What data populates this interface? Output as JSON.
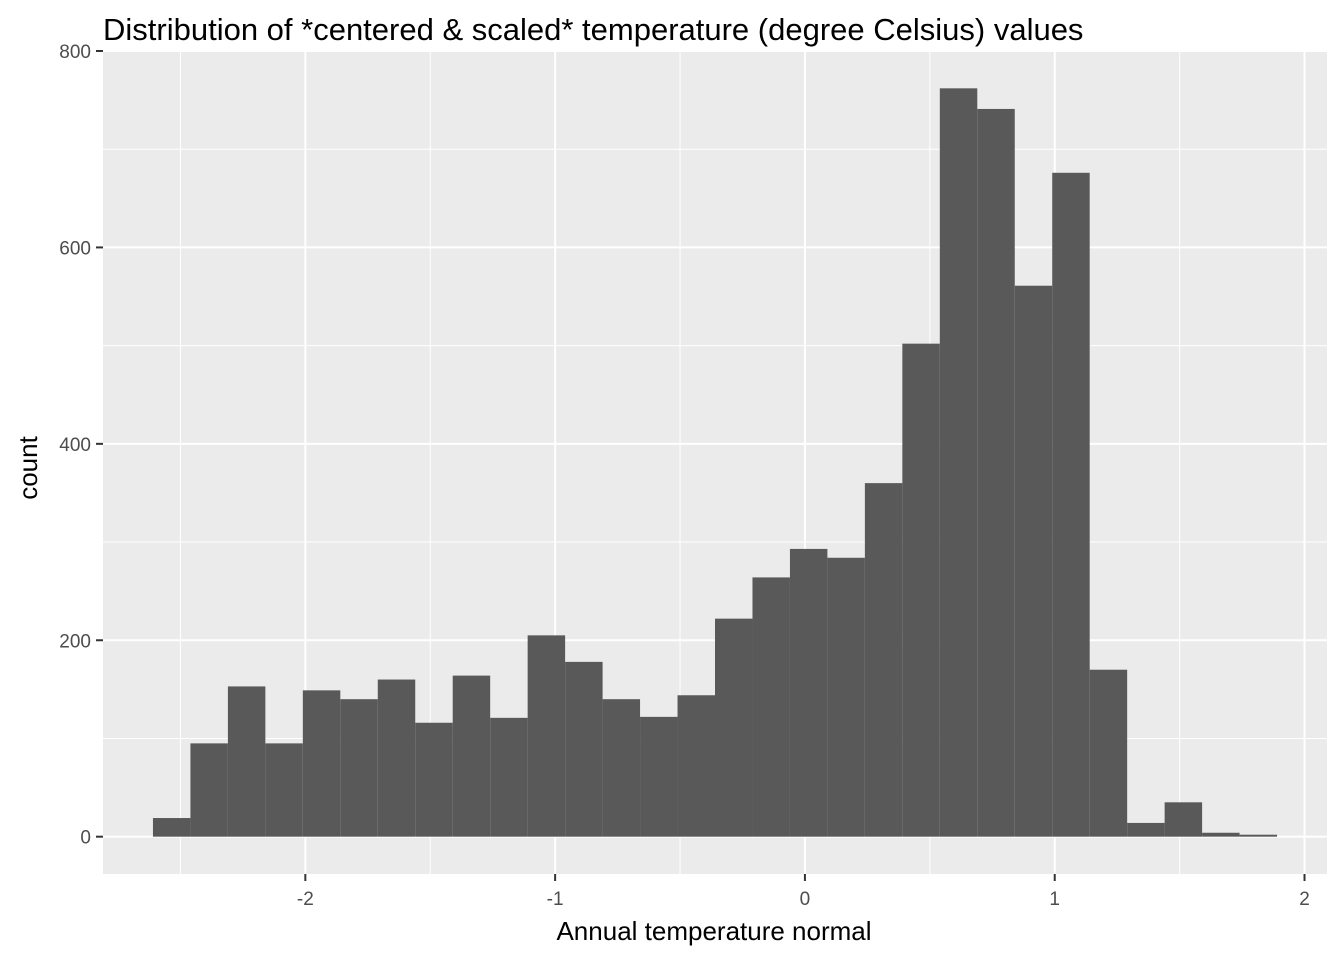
{
  "chart_data": {
    "type": "bar",
    "title": "Distribution of *centered & scaled* temperature (degree Celsius) values",
    "xlabel": "Annual temperature normal",
    "ylabel": "count",
    "xlim": [
      -2.81,
      2.09
    ],
    "ylim": [
      -38,
      800
    ],
    "x_ticks": [
      -2,
      -1,
      0,
      1,
      2
    ],
    "x_tick_labels": [
      "-2",
      "-1",
      "0",
      "1",
      "2"
    ],
    "y_ticks": [
      0,
      200,
      400,
      600,
      800
    ],
    "y_tick_labels": [
      "0",
      "200",
      "400",
      "600",
      "800"
    ],
    "grid": true,
    "bar_color": "#595959",
    "panel_color": "#ebebeb",
    "bin_width": 0.15,
    "bins": [
      {
        "x0": -2.61,
        "x1": -2.46,
        "count": 19
      },
      {
        "x0": -2.46,
        "x1": -2.31,
        "count": 95
      },
      {
        "x0": -2.31,
        "x1": -2.16,
        "count": 153
      },
      {
        "x0": -2.16,
        "x1": -2.01,
        "count": 95
      },
      {
        "x0": -2.01,
        "x1": -1.86,
        "count": 149
      },
      {
        "x0": -1.86,
        "x1": -1.71,
        "count": 140
      },
      {
        "x0": -1.71,
        "x1": -1.56,
        "count": 160
      },
      {
        "x0": -1.56,
        "x1": -1.41,
        "count": 116
      },
      {
        "x0": -1.41,
        "x1": -1.26,
        "count": 164
      },
      {
        "x0": -1.26,
        "x1": -1.11,
        "count": 121
      },
      {
        "x0": -1.11,
        "x1": -0.96,
        "count": 205
      },
      {
        "x0": -0.96,
        "x1": -0.81,
        "count": 178
      },
      {
        "x0": -0.81,
        "x1": -0.66,
        "count": 140
      },
      {
        "x0": -0.66,
        "x1": -0.51,
        "count": 122
      },
      {
        "x0": -0.51,
        "x1": -0.36,
        "count": 144
      },
      {
        "x0": -0.36,
        "x1": -0.21,
        "count": 222
      },
      {
        "x0": -0.21,
        "x1": -0.06,
        "count": 264
      },
      {
        "x0": -0.06,
        "x1": 0.09,
        "count": 293
      },
      {
        "x0": 0.09,
        "x1": 0.24,
        "count": 284
      },
      {
        "x0": 0.24,
        "x1": 0.39,
        "count": 360
      },
      {
        "x0": 0.39,
        "x1": 0.54,
        "count": 502
      },
      {
        "x0": 0.54,
        "x1": 0.69,
        "count": 762
      },
      {
        "x0": 0.69,
        "x1": 0.84,
        "count": 741
      },
      {
        "x0": 0.84,
        "x1": 0.99,
        "count": 561
      },
      {
        "x0": 0.99,
        "x1": 1.14,
        "count": 676
      },
      {
        "x0": 1.14,
        "x1": 1.29,
        "count": 170
      },
      {
        "x0": 1.29,
        "x1": 1.44,
        "count": 14
      },
      {
        "x0": 1.44,
        "x1": 1.59,
        "count": 35
      },
      {
        "x0": 1.59,
        "x1": 1.74,
        "count": 4
      },
      {
        "x0": 1.74,
        "x1": 1.89,
        "count": 2
      }
    ]
  }
}
